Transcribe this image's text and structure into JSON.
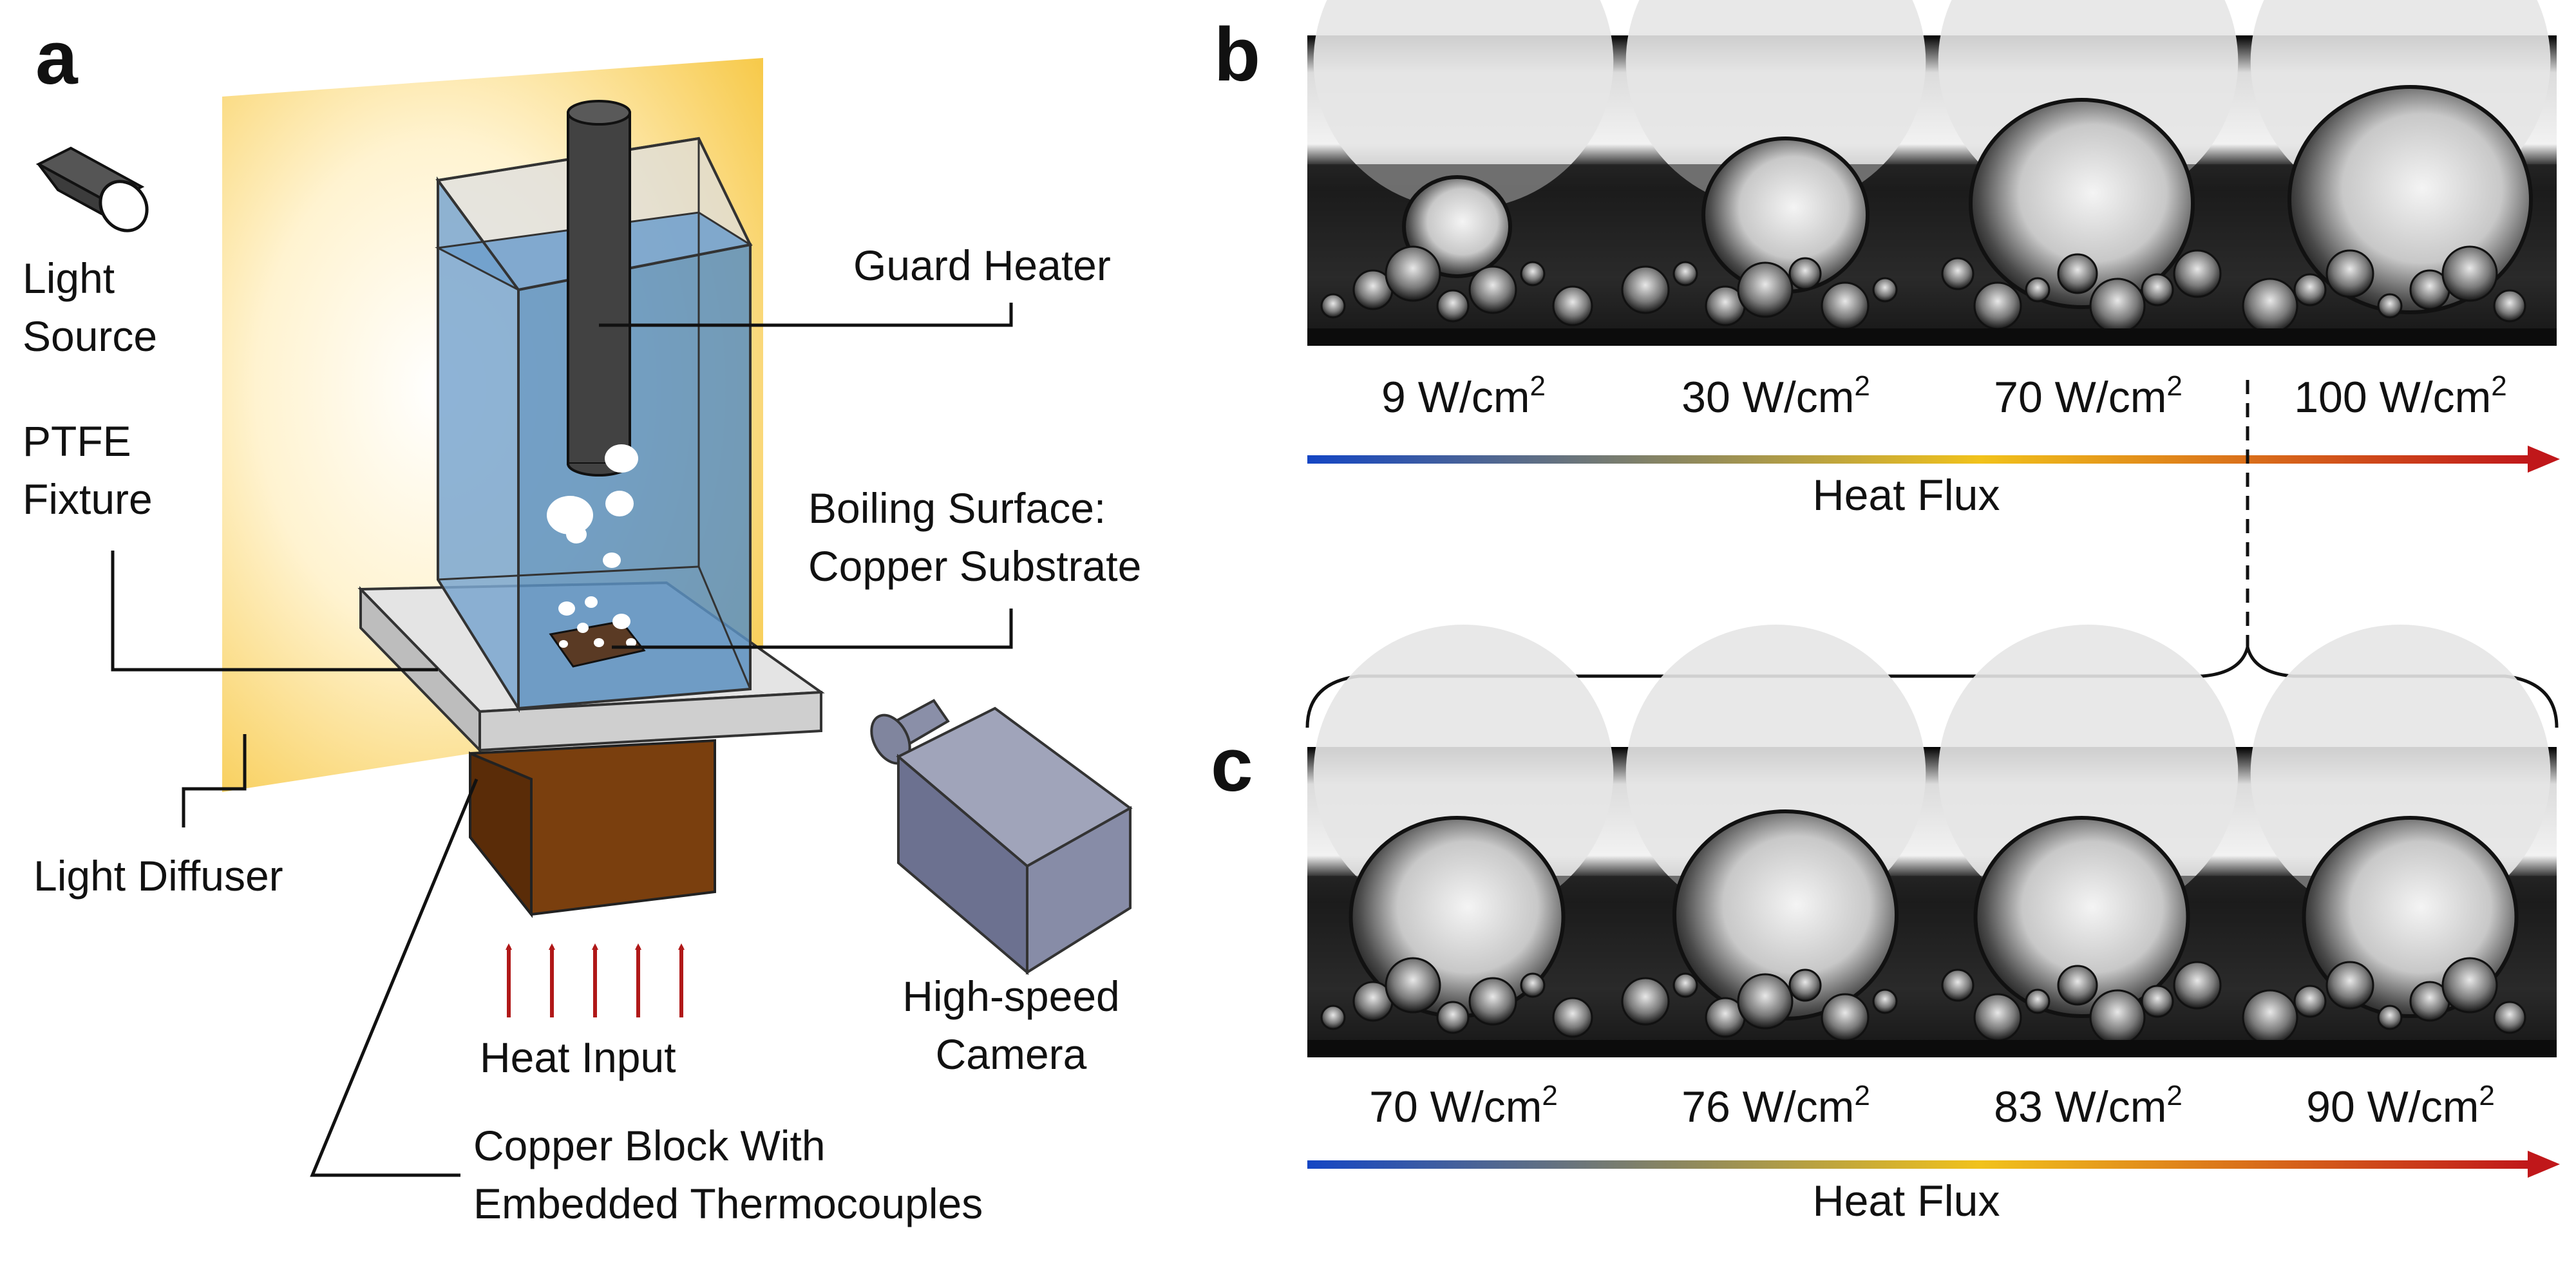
{
  "panels": {
    "a": "a",
    "b": "b",
    "c": "c"
  },
  "setup_labels": {
    "light_source_1": "Light",
    "light_source_2": "Source",
    "ptfe_1": "PTFE",
    "ptfe_2": "Fixture",
    "guard_heater": "Guard Heater",
    "boiling_1": "Boiling Surface:",
    "boiling_2": "Copper Substrate",
    "light_diffuser": "Light Diffuser",
    "heat_input": "Heat Input",
    "camera_1": "High-speed",
    "camera_2": "Camera",
    "copper_block_1": "Copper Block With",
    "copper_block_2": "Embedded Thermocouples"
  },
  "unit": "W/cm",
  "unit_exponent": "2",
  "row_b": {
    "fluxes": [
      "9",
      "30",
      "70",
      "100"
    ],
    "axis_label": "Heat Flux"
  },
  "row_c": {
    "fluxes": [
      "70",
      "76",
      "83",
      "90"
    ],
    "axis_label": "Heat Flux"
  },
  "colors": {
    "water": "#5b8fbf",
    "copper_block": "#7a3f0e",
    "diffuser": "#f7c948",
    "arrow_red": "#b01818",
    "gradient_start": "#1446c4",
    "gradient_mid": "#f1c21b",
    "gradient_end": "#c0171a",
    "camera": "#767b94"
  }
}
